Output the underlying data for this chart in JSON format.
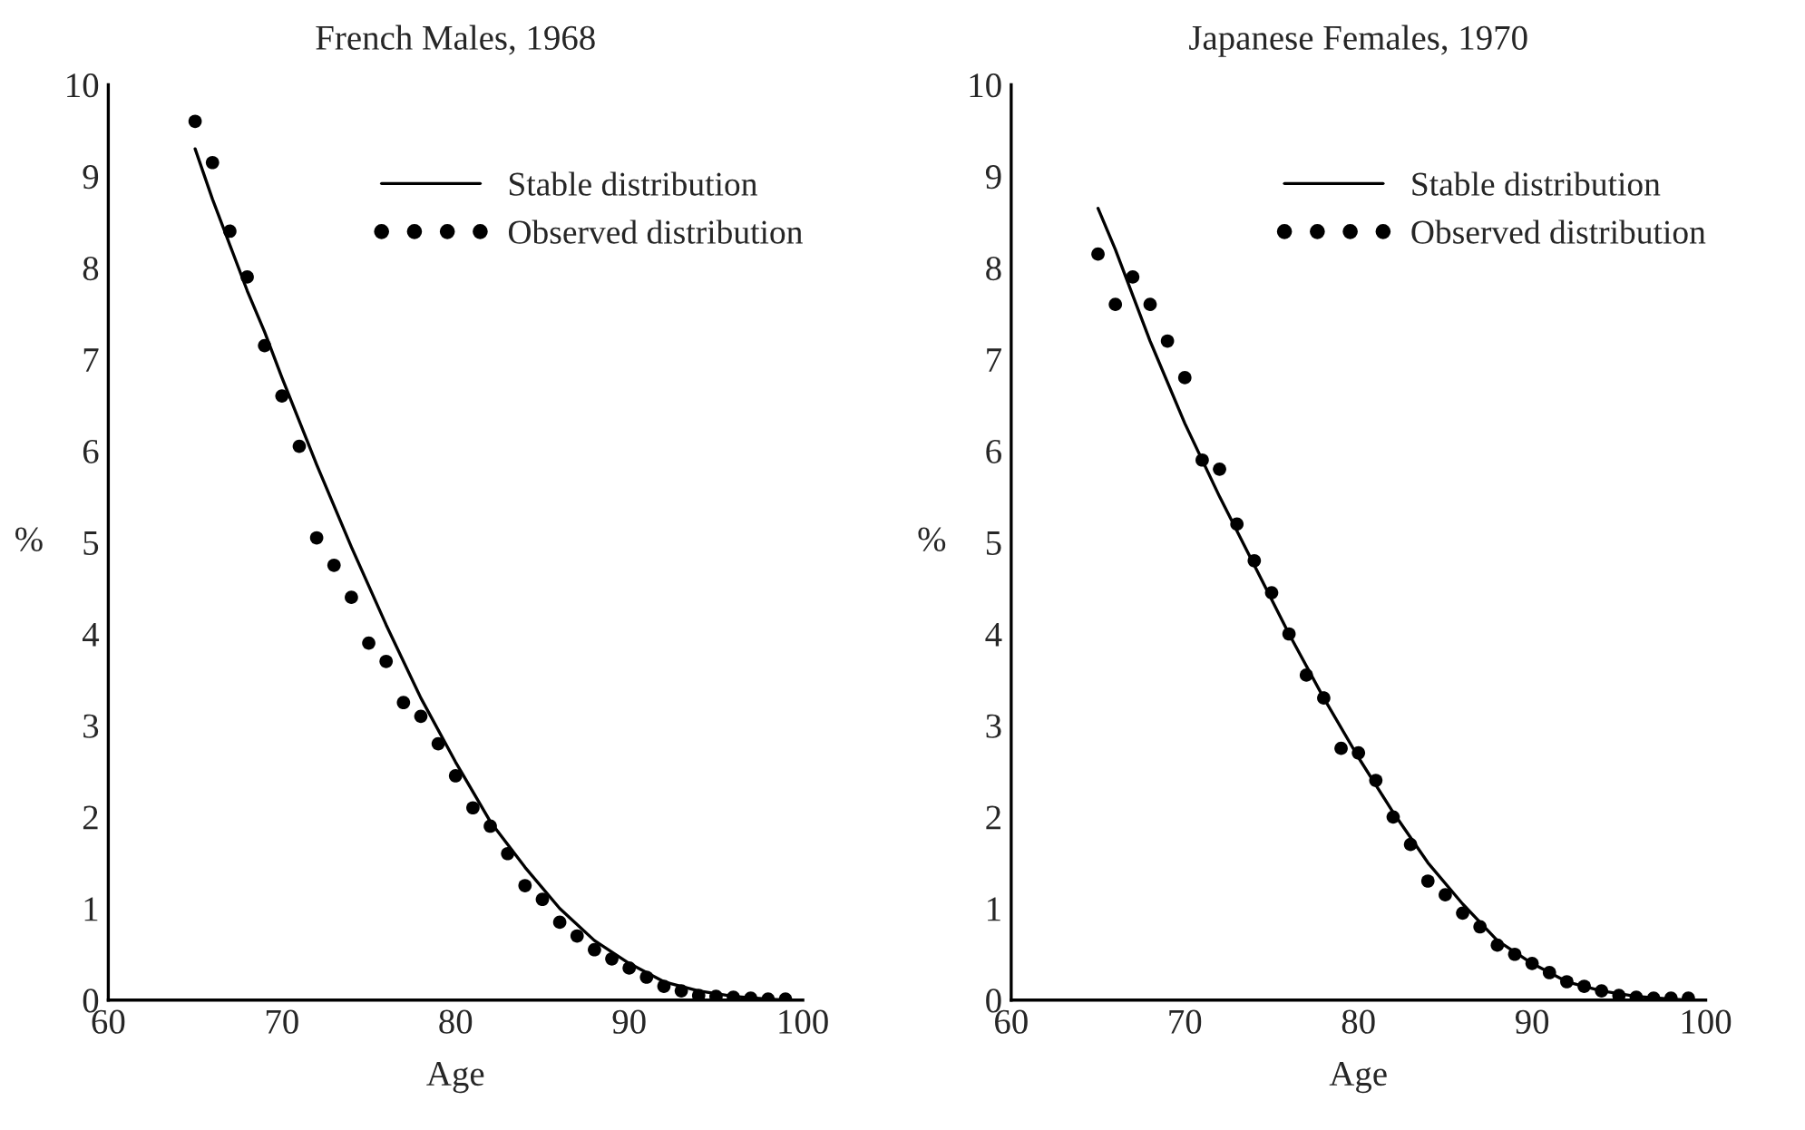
{
  "chart_data": [
    {
      "type": "line",
      "title": "French Males, 1968",
      "xlabel": "Age",
      "ylabel": "%",
      "xlim": [
        60,
        100
      ],
      "xticks": [
        60,
        70,
        80,
        90,
        100
      ],
      "ylim": [
        0,
        10
      ],
      "yticks": [
        0,
        1,
        2,
        3,
        4,
        5,
        6,
        7,
        8,
        9,
        10
      ],
      "grid": false,
      "legend": "top right",
      "series": [
        {
          "name": "Stable distribution",
          "color": "#000000",
          "line_style": "solid",
          "x": [
            65,
            66,
            67,
            68,
            69,
            70,
            72,
            74,
            76,
            78,
            80,
            82,
            84,
            86,
            88,
            90,
            92,
            94,
            96,
            98,
            99
          ],
          "values": [
            9.3,
            8.75,
            8.25,
            7.75,
            7.3,
            6.8,
            5.85,
            4.95,
            4.1,
            3.3,
            2.6,
            1.95,
            1.45,
            1.0,
            0.65,
            0.4,
            0.2,
            0.1,
            0.04,
            0.01,
            0.0
          ]
        },
        {
          "name": "Observed distribution",
          "type": "scatter",
          "color": "#000000",
          "marker": "circle",
          "x": [
            65,
            66,
            67,
            68,
            69,
            70,
            71,
            72,
            73,
            74,
            75,
            76,
            77,
            78,
            79,
            80,
            81,
            82,
            83,
            84,
            85,
            86,
            87,
            88,
            89,
            90,
            91,
            92,
            93,
            94,
            95,
            96,
            97,
            98,
            99
          ],
          "values": [
            9.6,
            9.15,
            8.4,
            7.9,
            7.15,
            6.6,
            6.05,
            5.05,
            4.75,
            4.4,
            3.9,
            3.7,
            3.25,
            3.1,
            2.8,
            2.45,
            2.1,
            1.9,
            1.6,
            1.25,
            1.1,
            0.85,
            0.7,
            0.55,
            0.45,
            0.35,
            0.25,
            0.15,
            0.1,
            0.05,
            0.04,
            0.03,
            0.02,
            0.01,
            0.01
          ]
        }
      ]
    },
    {
      "type": "line",
      "title": "Japanese Females, 1970",
      "xlabel": "Age",
      "ylabel": "%",
      "xlim": [
        60,
        100
      ],
      "xticks": [
        60,
        70,
        80,
        90,
        100
      ],
      "ylim": [
        0,
        10
      ],
      "yticks": [
        0,
        1,
        2,
        3,
        4,
        5,
        6,
        7,
        8,
        9,
        10
      ],
      "grid": false,
      "legend": "top right",
      "series": [
        {
          "name": "Stable distribution",
          "color": "#000000",
          "line_style": "solid",
          "x": [
            65,
            66,
            67,
            68,
            70,
            72,
            74,
            76,
            78,
            80,
            82,
            84,
            86,
            88,
            90,
            92,
            94,
            96,
            98,
            99
          ],
          "values": [
            8.65,
            8.2,
            7.7,
            7.2,
            6.3,
            5.5,
            4.75,
            4.0,
            3.3,
            2.65,
            2.05,
            1.5,
            1.05,
            0.65,
            0.4,
            0.2,
            0.1,
            0.04,
            0.01,
            0.0
          ]
        },
        {
          "name": "Observed distribution",
          "type": "scatter",
          "color": "#000000",
          "marker": "circle",
          "x": [
            65,
            66,
            67,
            68,
            69,
            70,
            71,
            72,
            73,
            74,
            75,
            76,
            77,
            78,
            79,
            80,
            81,
            82,
            83,
            84,
            85,
            86,
            87,
            88,
            89,
            90,
            91,
            92,
            93,
            94,
            95,
            96,
            97,
            98,
            99
          ],
          "values": [
            8.15,
            7.6,
            7.9,
            7.6,
            7.2,
            6.8,
            5.9,
            5.8,
            5.2,
            4.8,
            4.45,
            4.0,
            3.55,
            3.3,
            2.75,
            2.7,
            2.4,
            2.0,
            1.7,
            1.3,
            1.15,
            0.95,
            0.8,
            0.6,
            0.5,
            0.4,
            0.3,
            0.2,
            0.15,
            0.1,
            0.05,
            0.03,
            0.02,
            0.02,
            0.02
          ]
        }
      ]
    }
  ]
}
